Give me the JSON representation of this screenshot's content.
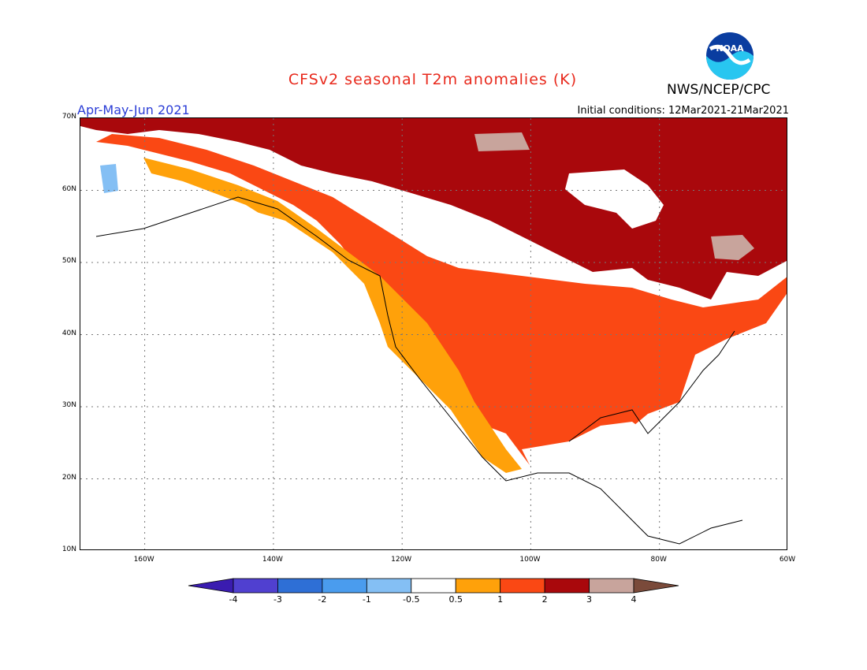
{
  "title": "CFSv2 seasonal T2m anomalies (K)",
  "agency": "NWS/NCEP/CPC",
  "logo_text": "NOAA",
  "season": "Apr-May-Jun 2021",
  "initial_conditions": "Initial conditions: 12Mar2021-21Mar2021",
  "map": {
    "projection": "lat-lon",
    "lon_range": [
      -170,
      -60
    ],
    "lat_range": [
      10,
      70
    ],
    "y_ticks": [
      {
        "lat": 70,
        "label": "70N"
      },
      {
        "lat": 60,
        "label": "60N"
      },
      {
        "lat": 50,
        "label": "50N"
      },
      {
        "lat": 40,
        "label": "40N"
      },
      {
        "lat": 30,
        "label": "30N"
      },
      {
        "lat": 20,
        "label": "20N"
      },
      {
        "lat": 10,
        "label": "10N"
      }
    ],
    "x_ticks": [
      {
        "lon": -160,
        "label": "160W"
      },
      {
        "lon": -140,
        "label": "140W"
      },
      {
        "lon": -120,
        "label": "120W"
      },
      {
        "lon": -100,
        "label": "100W"
      },
      {
        "lon": -80,
        "label": "80W"
      },
      {
        "lon": -60,
        "label": "60W"
      }
    ],
    "gridlines": "dotted"
  },
  "colorbar": {
    "colors": [
      "#3a1cb0",
      "#5040d0",
      "#2e6fd6",
      "#4a9cee",
      "#84bff4",
      "#ffffff",
      "#ffa10a",
      "#fa4814",
      "#a9080c",
      "#c8a49c",
      "#7a4a3a"
    ],
    "labels": [
      "-4",
      "-3",
      "-2",
      "-1",
      "-0.5",
      "0.5",
      "1",
      "2",
      "3",
      "4"
    ]
  },
  "anomaly_regions": [
    {
      "name": "Arctic Canada / Northwest Territories",
      "category": "2-3"
    },
    {
      "name": "Hudson Bay",
      "category": "below 0.5"
    },
    {
      "name": "Quebec / Labrador",
      "category": "2-3"
    },
    {
      "name": "Central & Eastern US",
      "category": "1-2"
    },
    {
      "name": "Pacific Northwest coast",
      "category": "0.5-1"
    },
    {
      "name": "Western Alaska",
      "category": "-0.5 to -1"
    }
  ]
}
